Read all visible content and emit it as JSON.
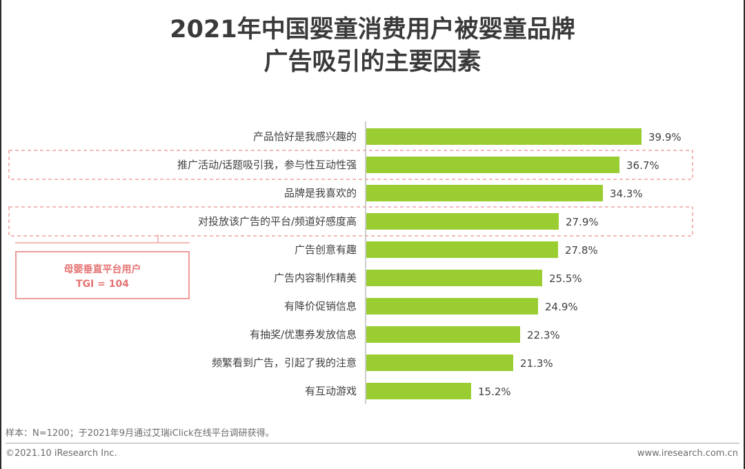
{
  "title_line1": "2021年中国婴童消费用户被婴童品牌",
  "title_line2": "广告吸引的主要因素",
  "callout": {
    "line1": "母婴垂直平台用户",
    "line2": "TGI = 104"
  },
  "footnote": "样本：N=1200；于2021年9月通过艾瑞iClick在线平台调研获得。",
  "copyright": "©2021.10 iResearch Inc.",
  "website": "www.iresearch.com.cn",
  "colors": {
    "bar": "#9acd32",
    "highlight_box": "#f0a0a0",
    "axis": "#9e9e9e"
  },
  "chart_data": {
    "type": "bar",
    "orientation": "horizontal",
    "title": "2021年中国婴童消费用户被婴童品牌广告吸引的主要因素",
    "unit": "%",
    "xlim": [
      0,
      40
    ],
    "categories": [
      "产品恰好是我感兴趣的",
      "推广活动/话题吸引我，参与性互动性强",
      "品牌是我喜欢的",
      "对投放该广告的平台/频道好感度高",
      "广告创意有趣",
      "广告内容制作精美",
      "有降价促销信息",
      "有抽奖/优惠券发放信息",
      "频繁看到广告，引起了我的注意",
      "有互动游戏"
    ],
    "values": [
      39.9,
      36.7,
      34.3,
      27.9,
      27.8,
      25.5,
      24.9,
      22.3,
      21.3,
      15.2
    ],
    "value_labels": [
      "39.9%",
      "36.7%",
      "34.3%",
      "27.9%",
      "27.8%",
      "25.5%",
      "24.9%",
      "22.3%",
      "21.3%",
      "15.2%"
    ],
    "highlighted": [
      1,
      3
    ]
  }
}
